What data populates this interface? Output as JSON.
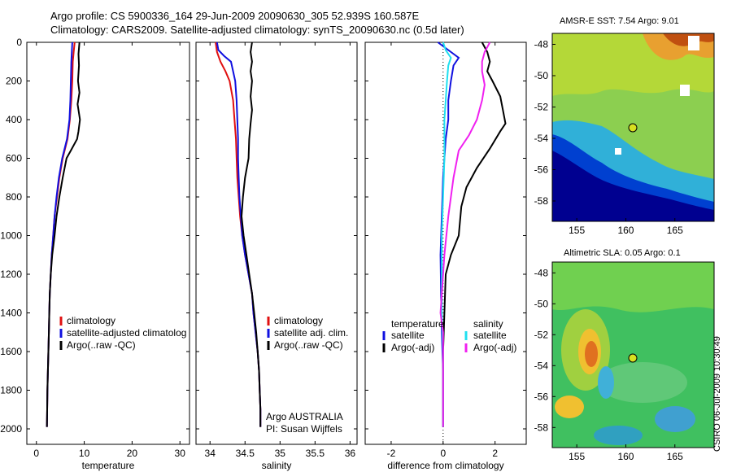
{
  "header": {
    "line1": "Argo profile: CS 5900336_164 29-Jun-2009 20090630_305 52.939S 160.587E",
    "line2": "Climatology: CARS2009. Satellite-adjusted climatology: synTS_20090630.nc (0.5d later)"
  },
  "colors": {
    "climatology": "#e01010",
    "satellite": "#1010e0",
    "argo": "#000000",
    "sat_salinity": "#20e0f0",
    "argo_salinity_diff": "#f020f0"
  },
  "chart_data": [
    {
      "type": "line",
      "xlabel": "temperature",
      "ylabel": "",
      "xlim": [
        -2,
        32
      ],
      "ylim": [
        0,
        2080
      ],
      "xticks": [
        0,
        10,
        20,
        30
      ],
      "yticks": [
        0,
        200,
        400,
        600,
        800,
        1000,
        1200,
        1400,
        1600,
        1800,
        2000
      ],
      "legend": {
        "position": "right",
        "labels": [
          "climatology",
          "satellite-adjusted climatolog",
          "Argo(..raw -QC)"
        ]
      },
      "series": [
        {
          "name": "climatology",
          "color": "#e01010",
          "points": [
            [
              8.0,
              0
            ],
            [
              7.8,
              50
            ],
            [
              7.6,
              100
            ],
            [
              7.5,
              200
            ],
            [
              7.3,
              300
            ],
            [
              7.0,
              400
            ],
            [
              6.5,
              500
            ],
            [
              5.5,
              600
            ],
            [
              4.8,
              700
            ],
            [
              4.3,
              800
            ],
            [
              3.8,
              900
            ],
            [
              3.5,
              1000
            ],
            [
              3.2,
              1100
            ],
            [
              3.0,
              1200
            ],
            [
              2.8,
              1300
            ],
            [
              2.7,
              1400
            ],
            [
              2.6,
              1500
            ],
            [
              2.5,
              1600
            ],
            [
              2.4,
              1700
            ],
            [
              2.3,
              1800
            ],
            [
              2.25,
              1900
            ],
            [
              2.2,
              1990
            ]
          ]
        },
        {
          "name": "satellite-adjusted climatolog",
          "color": "#1010e0",
          "points": [
            [
              7.5,
              0
            ],
            [
              7.4,
              50
            ],
            [
              7.3,
              100
            ],
            [
              7.2,
              200
            ],
            [
              7.1,
              300
            ],
            [
              6.9,
              400
            ],
            [
              6.4,
              500
            ],
            [
              5.4,
              600
            ],
            [
              4.7,
              700
            ],
            [
              4.2,
              800
            ],
            [
              3.8,
              900
            ],
            [
              3.5,
              1000
            ],
            [
              3.2,
              1100
            ],
            [
              3.0,
              1200
            ],
            [
              2.8,
              1300
            ],
            [
              2.7,
              1400
            ],
            [
              2.6,
              1500
            ],
            [
              2.5,
              1600
            ],
            [
              2.4,
              1700
            ],
            [
              2.3,
              1800
            ],
            [
              2.25,
              1900
            ],
            [
              2.2,
              1990
            ]
          ]
        },
        {
          "name": "Argo(..raw -QC)",
          "color": "#000000",
          "points": [
            [
              9.0,
              0
            ],
            [
              8.8,
              60
            ],
            [
              8.9,
              120
            ],
            [
              8.7,
              200
            ],
            [
              9.0,
              260
            ],
            [
              8.6,
              320
            ],
            [
              9.1,
              400
            ],
            [
              8.8,
              460
            ],
            [
              8.5,
              500
            ],
            [
              7.2,
              560
            ],
            [
              6.3,
              600
            ],
            [
              5.5,
              700
            ],
            [
              4.8,
              800
            ],
            [
              4.2,
              900
            ],
            [
              3.8,
              1000
            ],
            [
              3.3,
              1100
            ],
            [
              3.0,
              1200
            ],
            [
              2.8,
              1300
            ],
            [
              2.7,
              1400
            ],
            [
              2.6,
              1500
            ],
            [
              2.5,
              1600
            ],
            [
              2.4,
              1700
            ],
            [
              2.3,
              1800
            ],
            [
              2.25,
              1900
            ],
            [
              2.2,
              1990
            ]
          ]
        }
      ]
    },
    {
      "type": "line",
      "xlabel": "salinity",
      "ylabel": "",
      "xlim": [
        33.8,
        36.1
      ],
      "ylim": [
        0,
        2080
      ],
      "xticks": [
        34,
        34.5,
        35,
        35.5,
        36
      ],
      "yticks": [
        0,
        200,
        400,
        600,
        800,
        1000,
        1200,
        1400,
        1600,
        1800,
        2000
      ],
      "legend": {
        "position": "right",
        "labels": [
          "climatology",
          "satellite adj. clim.",
          "Argo(..raw -QC)"
        ]
      },
      "series": [
        {
          "name": "climatology",
          "color": "#e01010",
          "points": [
            [
              34.08,
              0
            ],
            [
              34.1,
              50
            ],
            [
              34.15,
              100
            ],
            [
              34.22,
              150
            ],
            [
              34.28,
              200
            ],
            [
              34.33,
              300
            ],
            [
              34.35,
              400
            ],
            [
              34.37,
              500
            ],
            [
              34.38,
              600
            ],
            [
              34.39,
              700
            ],
            [
              34.41,
              800
            ],
            [
              34.43,
              900
            ],
            [
              34.46,
              1000
            ],
            [
              34.5,
              1100
            ],
            [
              34.55,
              1200
            ],
            [
              34.6,
              1300
            ],
            [
              34.62,
              1400
            ],
            [
              34.65,
              1500
            ],
            [
              34.68,
              1600
            ],
            [
              34.7,
              1700
            ],
            [
              34.71,
              1800
            ],
            [
              34.72,
              1900
            ],
            [
              34.72,
              1990
            ]
          ]
        },
        {
          "name": "satellite adj. clim.",
          "color": "#1010e0",
          "points": [
            [
              34.1,
              0
            ],
            [
              34.12,
              40
            ],
            [
              34.2,
              70
            ],
            [
              34.3,
              100
            ],
            [
              34.33,
              150
            ],
            [
              34.36,
              200
            ],
            [
              34.38,
              300
            ],
            [
              34.39,
              400
            ],
            [
              34.4,
              500
            ],
            [
              34.4,
              600
            ],
            [
              34.41,
              700
            ],
            [
              34.42,
              800
            ],
            [
              34.44,
              900
            ],
            [
              34.46,
              1000
            ],
            [
              34.5,
              1100
            ],
            [
              34.55,
              1200
            ],
            [
              34.6,
              1300
            ],
            [
              34.62,
              1400
            ],
            [
              34.65,
              1500
            ],
            [
              34.68,
              1600
            ],
            [
              34.7,
              1700
            ],
            [
              34.71,
              1800
            ],
            [
              34.72,
              1900
            ],
            [
              34.72,
              1990
            ]
          ]
        },
        {
          "name": "Argo(..raw -QC)",
          "color": "#000000",
          "points": [
            [
              34.6,
              0
            ],
            [
              34.58,
              50
            ],
            [
              34.6,
              100
            ],
            [
              34.58,
              150
            ],
            [
              34.6,
              200
            ],
            [
              34.58,
              280
            ],
            [
              34.6,
              350
            ],
            [
              34.58,
              420
            ],
            [
              34.56,
              500
            ],
            [
              34.55,
              600
            ],
            [
              34.5,
              700
            ],
            [
              34.47,
              800
            ],
            [
              34.45,
              900
            ],
            [
              34.48,
              1000
            ],
            [
              34.52,
              1100
            ],
            [
              34.56,
              1200
            ],
            [
              34.6,
              1300
            ],
            [
              34.63,
              1400
            ],
            [
              34.66,
              1500
            ],
            [
              34.68,
              1600
            ],
            [
              34.7,
              1700
            ],
            [
              34.71,
              1800
            ],
            [
              34.72,
              1900
            ],
            [
              34.72,
              1990
            ]
          ]
        }
      ],
      "annotations": [
        "Argo AUSTRALIA",
        "PI: Susan Wijffels"
      ]
    },
    {
      "type": "line",
      "xlabel": "difference from climatology",
      "ylabel": "",
      "xlim": [
        -3,
        3.2
      ],
      "ylim": [
        0,
        2080
      ],
      "xticks": [
        -2,
        0,
        2
      ],
      "yticks": [
        0,
        200,
        400,
        600,
        800,
        1000,
        1200,
        1400,
        1600,
        1800,
        2000
      ],
      "legend": {
        "position": "right",
        "labels": [
          "temperature",
          "satellite",
          "Argo(-adj)",
          "salinity",
          "satellite",
          "Argo(-adj)"
        ]
      },
      "series": [
        {
          "name": "satellite",
          "color": "#1010e0",
          "points": [
            [
              -0.2,
              0
            ],
            [
              0.2,
              40
            ],
            [
              0.6,
              80
            ],
            [
              0.4,
              120
            ],
            [
              0.3,
              200
            ],
            [
              0.2,
              300
            ],
            [
              0.2,
              400
            ],
            [
              0.1,
              500
            ],
            [
              0.05,
              600
            ],
            [
              0.0,
              700
            ],
            [
              -0.05,
              900
            ],
            [
              -0.1,
              1100
            ],
            [
              -0.08,
              1300
            ],
            [
              -0.05,
              1500
            ],
            [
              0.0,
              1700
            ],
            [
              0.0,
              1990
            ]
          ]
        },
        {
          "name": "Argo(-adj)",
          "color": "#000000",
          "points": [
            [
              1.5,
              0
            ],
            [
              1.7,
              50
            ],
            [
              1.8,
              100
            ],
            [
              1.7,
              150
            ],
            [
              1.9,
              200
            ],
            [
              2.2,
              280
            ],
            [
              2.3,
              350
            ],
            [
              2.4,
              420
            ],
            [
              2.2,
              460
            ],
            [
              1.8,
              550
            ],
            [
              1.3,
              650
            ],
            [
              0.9,
              750
            ],
            [
              0.7,
              850
            ],
            [
              0.6,
              1000
            ],
            [
              0.3,
              1100
            ],
            [
              0.1,
              1200
            ],
            [
              0.05,
              1400
            ],
            [
              0.0,
              1600
            ],
            [
              0.0,
              1990
            ]
          ]
        },
        {
          "name": "satellite",
          "color": "#20e0f0",
          "points": [
            [
              0.0,
              0
            ],
            [
              0.1,
              40
            ],
            [
              0.3,
              80
            ],
            [
              0.2,
              120
            ],
            [
              0.15,
              200
            ],
            [
              0.1,
              300
            ],
            [
              0.05,
              400
            ],
            [
              0.05,
              600
            ],
            [
              0.0,
              800
            ],
            [
              -0.05,
              1000
            ],
            [
              -0.05,
              1200
            ],
            [
              -0.05,
              1400
            ],
            [
              0.0,
              1600
            ],
            [
              0.0,
              1990
            ]
          ]
        },
        {
          "name": "Argo(-adj)",
          "color": "#f020f0",
          "points": [
            [
              1.8,
              0
            ],
            [
              1.6,
              50
            ],
            [
              1.5,
              100
            ],
            [
              1.5,
              150
            ],
            [
              1.6,
              220
            ],
            [
              1.5,
              300
            ],
            [
              1.3,
              400
            ],
            [
              1.0,
              480
            ],
            [
              0.6,
              560
            ],
            [
              0.4,
              700
            ],
            [
              0.3,
              800
            ],
            [
              0.2,
              900
            ],
            [
              0.05,
              1100
            ],
            [
              -0.05,
              1300
            ],
            [
              -0.1,
              1400
            ],
            [
              0.0,
              1500
            ],
            [
              0.0,
              1700
            ],
            [
              0.0,
              1990
            ]
          ]
        }
      ]
    }
  ],
  "maps": [
    {
      "title": "AMSR-E SST: 7.54 Argo: 9.01",
      "xticks": [
        155,
        160,
        165
      ],
      "yticks": [
        -48,
        -50,
        -52,
        -54,
        -56,
        -58
      ],
      "xlim": [
        152.5,
        169
      ],
      "ylim": [
        -59.3,
        -47.3
      ],
      "argo_position": {
        "lon": 160.587,
        "lat": -52.939
      }
    },
    {
      "title": "Altimetric SLA: 0.05 Argo: 0.1",
      "xticks": [
        155,
        160,
        165
      ],
      "yticks": [
        -48,
        -50,
        -52,
        -54,
        -56,
        -58
      ],
      "xlim": [
        152.5,
        169
      ],
      "ylim": [
        -59.3,
        -47.3
      ],
      "argo_position": {
        "lon": 160.587,
        "lat": -52.939
      }
    }
  ],
  "stamp": "CSIRO 06-Jul-2009 10:30:49"
}
